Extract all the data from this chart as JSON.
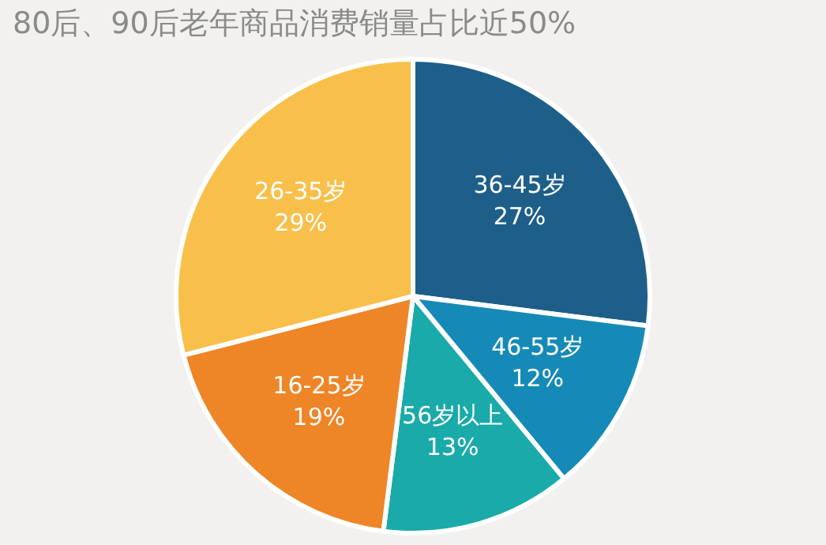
{
  "chart_data": {
    "type": "pie",
    "title": "80后、90后老年商品消费销量占比近50%",
    "categories": [
      "36-45岁",
      "46-55岁",
      "56岁以上",
      "16-25岁",
      "26-35岁"
    ],
    "values": [
      27,
      12,
      13,
      19,
      29
    ],
    "value_labels": [
      "27%",
      "12%",
      "13%",
      "19%",
      "29%"
    ],
    "colors": [
      "#1d5f89",
      "#168ab6",
      "#19aaa9",
      "#ee8526",
      "#f8bf4a"
    ]
  }
}
